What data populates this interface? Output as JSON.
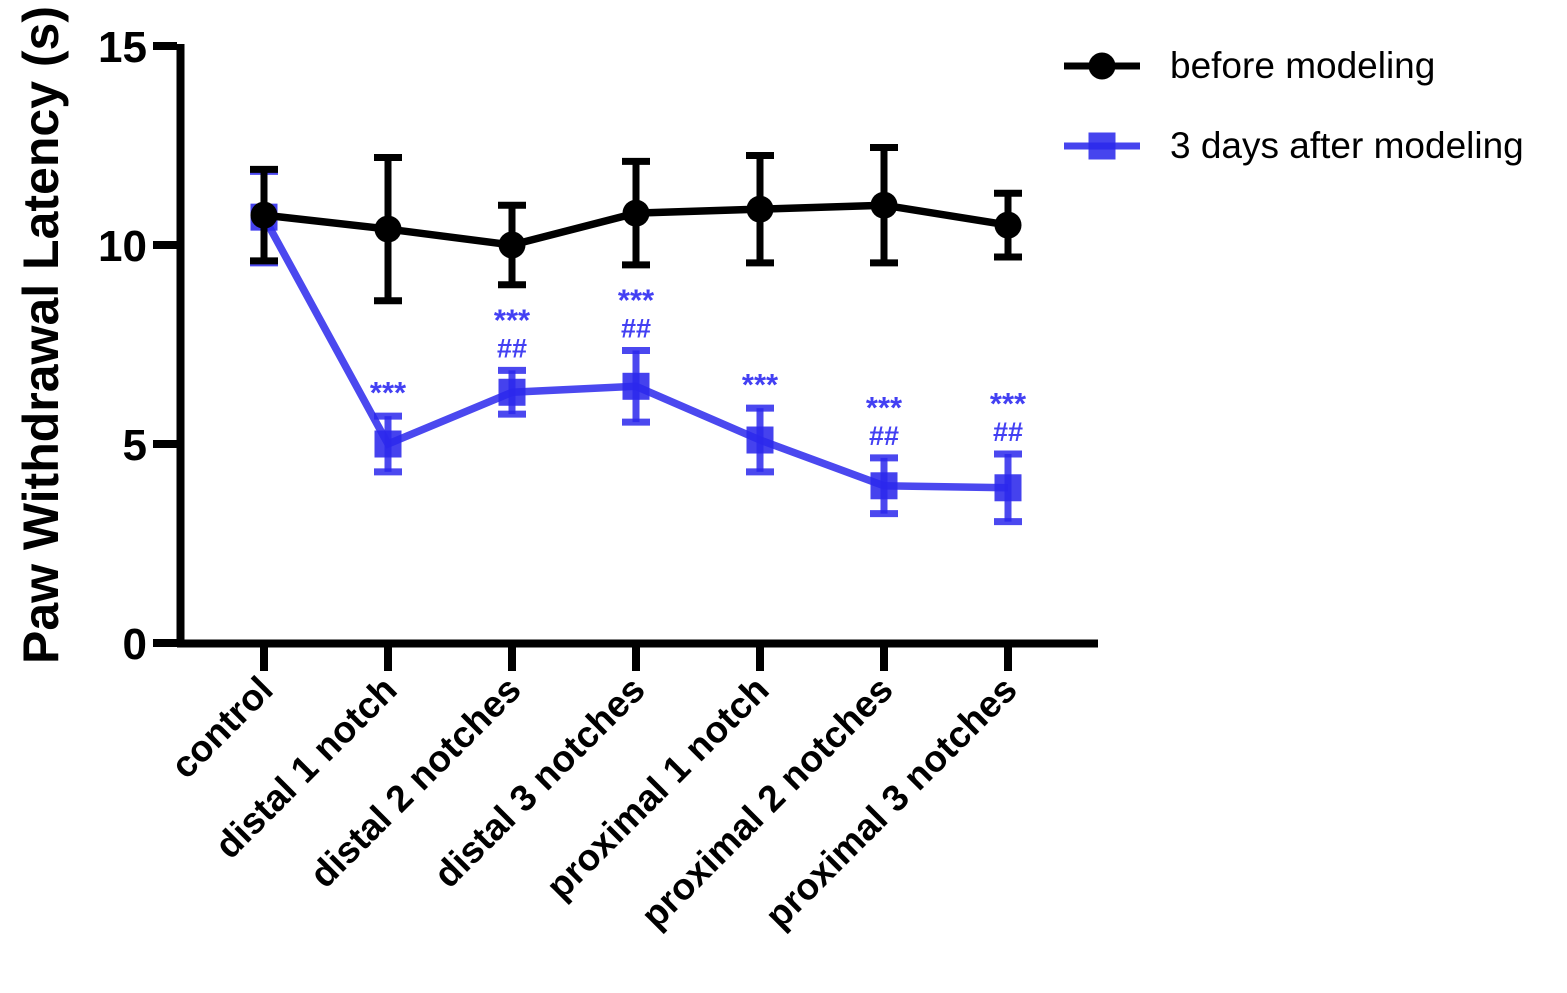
{
  "figure": {
    "background": "#ffffff"
  },
  "legend": {
    "items": [
      {
        "label": "before modeling",
        "marker": "circle",
        "color": "#000000"
      },
      {
        "label": "3 days after modeling",
        "marker": "square",
        "color": "#2B28EC"
      }
    ]
  },
  "chart_data": {
    "type": "line",
    "title": "",
    "xlabel": "",
    "ylabel": "Paw Withdrawal Latency (s)",
    "ylim": [
      0,
      15
    ],
    "yticks": [
      0,
      5,
      10,
      15
    ],
    "grid": false,
    "legend_position": "top-right",
    "categories": [
      "control",
      "distal 1 notch",
      "distal 2 notches",
      "distal 3 notches",
      "proximal 1 notch",
      "proximal 2 notches",
      "proximal 3 notches"
    ],
    "series": [
      {
        "name": "before modeling",
        "marker": "circle",
        "color": "#000000",
        "values": [
          10.75,
          10.4,
          10.0,
          10.8,
          10.9,
          11.0,
          10.5
        ],
        "errors": [
          1.15,
          1.8,
          1.0,
          1.3,
          1.35,
          1.45,
          0.8
        ]
      },
      {
        "name": "3 days after modeling",
        "marker": "square",
        "color": "#2B28EC",
        "values": [
          10.7,
          5.0,
          6.3,
          6.45,
          5.1,
          3.95,
          3.9
        ],
        "errors": [
          1.15,
          0.7,
          0.55,
          0.9,
          0.8,
          0.7,
          0.85
        ]
      }
    ],
    "annotations": [
      {
        "category_index": 1,
        "stars": "***",
        "hashes": ""
      },
      {
        "category_index": 2,
        "stars": "***",
        "hashes": "##"
      },
      {
        "category_index": 3,
        "stars": "***",
        "hashes": "##"
      },
      {
        "category_index": 4,
        "stars": "***",
        "hashes": ""
      },
      {
        "category_index": 5,
        "stars": "***",
        "hashes": "##"
      },
      {
        "category_index": 6,
        "stars": "***",
        "hashes": "##"
      }
    ],
    "annotation_color": "#4340F3"
  }
}
